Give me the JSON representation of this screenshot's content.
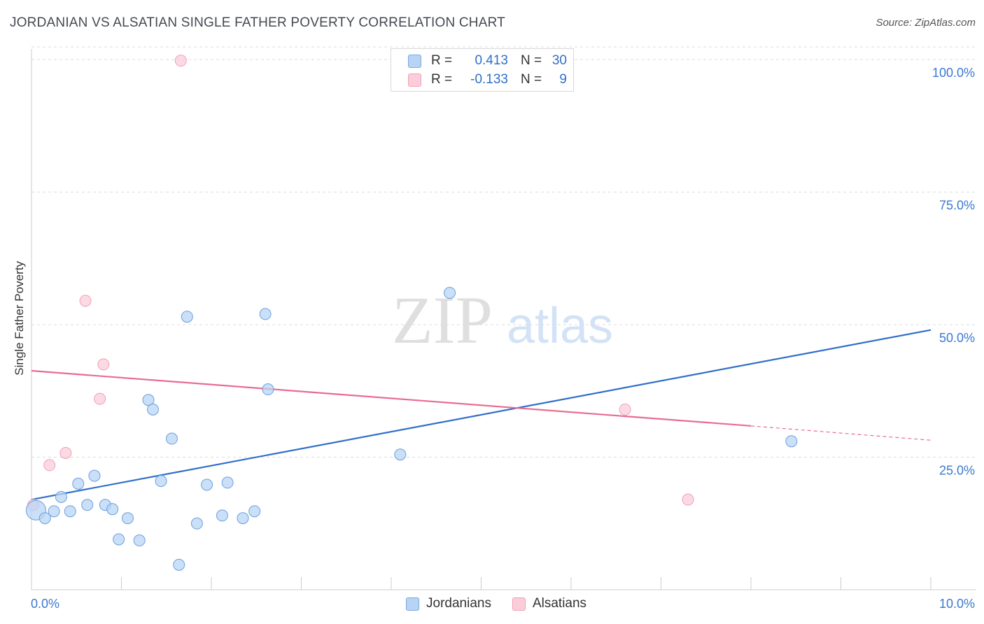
{
  "title": "JORDANIAN VS ALSATIAN SINGLE FATHER POVERTY CORRELATION CHART",
  "source": "Source: ZipAtlas.com",
  "watermark": {
    "zip": "ZIP",
    "atlas": "atlas"
  },
  "legend": {
    "rows": [
      {
        "r_label": "R =",
        "r_value": "0.413",
        "n_label": "N =",
        "n_value": "30"
      },
      {
        "r_label": "R =",
        "r_value": "-0.133",
        "n_label": "N =",
        "n_value": "9"
      }
    ]
  },
  "colors": {
    "blue_fill": "#b8d4f5",
    "blue_stroke": "#6d9fdc",
    "blue_line": "#2f6fc9",
    "pink_fill": "#fbcdd9",
    "pink_stroke": "#ef9fb7",
    "pink_line": "#e96c92",
    "axis_text": "#3a78d1",
    "grid": "#dcdcdc"
  },
  "chart_data": {
    "type": "scatter",
    "title": "JORDANIAN VS ALSATIAN SINGLE FATHER POVERTY CORRELATION CHART",
    "xlabel": "",
    "ylabel": "Single Father Poverty",
    "xlim": [
      0,
      10
    ],
    "ylim": [
      0,
      102
    ],
    "x_tick_labels": [
      "0.0%",
      "10.0%"
    ],
    "y_ticks": [
      25,
      50,
      75,
      100
    ],
    "y_tick_labels": [
      "25.0%",
      "50.0%",
      "75.0%",
      "100.0%"
    ],
    "legend_position": "bottom-center",
    "series": [
      {
        "name": "Jordanians",
        "r": 0.413,
        "n": 30,
        "points": [
          {
            "x": 0.05,
            "y": 15.0,
            "big": true
          },
          {
            "x": 0.15,
            "y": 13.5
          },
          {
            "x": 0.25,
            "y": 14.8
          },
          {
            "x": 0.33,
            "y": 17.5
          },
          {
            "x": 0.43,
            "y": 14.8
          },
          {
            "x": 0.52,
            "y": 20.0
          },
          {
            "x": 0.62,
            "y": 16.0
          },
          {
            "x": 0.7,
            "y": 21.5
          },
          {
            "x": 0.82,
            "y": 16.0
          },
          {
            "x": 0.9,
            "y": 15.2
          },
          {
            "x": 0.97,
            "y": 9.5
          },
          {
            "x": 1.07,
            "y": 13.5
          },
          {
            "x": 1.2,
            "y": 9.3
          },
          {
            "x": 1.3,
            "y": 35.8
          },
          {
            "x": 1.35,
            "y": 34.0
          },
          {
            "x": 1.44,
            "y": 20.5
          },
          {
            "x": 1.56,
            "y": 28.5
          },
          {
            "x": 1.64,
            "y": 4.7
          },
          {
            "x": 1.73,
            "y": 51.5
          },
          {
            "x": 1.84,
            "y": 12.5
          },
          {
            "x": 1.95,
            "y": 19.8
          },
          {
            "x": 2.12,
            "y": 14.0
          },
          {
            "x": 2.18,
            "y": 20.2
          },
          {
            "x": 2.35,
            "y": 13.5
          },
          {
            "x": 2.48,
            "y": 14.8
          },
          {
            "x": 2.6,
            "y": 52.0
          },
          {
            "x": 2.63,
            "y": 37.8
          },
          {
            "x": 4.1,
            "y": 25.5
          },
          {
            "x": 4.65,
            "y": 56.0
          },
          {
            "x": 8.45,
            "y": 28.0
          }
        ],
        "trend": {
          "x0": 0.0,
          "y0": 17.0,
          "x1": 10.0,
          "y1": 49.0
        }
      },
      {
        "name": "Alsatians",
        "r": -0.133,
        "n": 9,
        "points": [
          {
            "x": 0.02,
            "y": 16.0
          },
          {
            "x": 0.2,
            "y": 23.5
          },
          {
            "x": 0.38,
            "y": 25.8
          },
          {
            "x": 0.6,
            "y": 54.5
          },
          {
            "x": 0.76,
            "y": 36.0
          },
          {
            "x": 0.8,
            "y": 42.5
          },
          {
            "x": 1.66,
            "y": 99.8
          },
          {
            "x": 6.6,
            "y": 34.0
          },
          {
            "x": 7.3,
            "y": 17.0
          }
        ],
        "trend": {
          "x0": 0.0,
          "y0": 41.3,
          "x1": 8.0,
          "y1": 30.9
        },
        "trend_dashed": {
          "x0": 8.0,
          "y0": 30.9,
          "x1": 10.0,
          "y1": 28.2
        }
      }
    ]
  }
}
